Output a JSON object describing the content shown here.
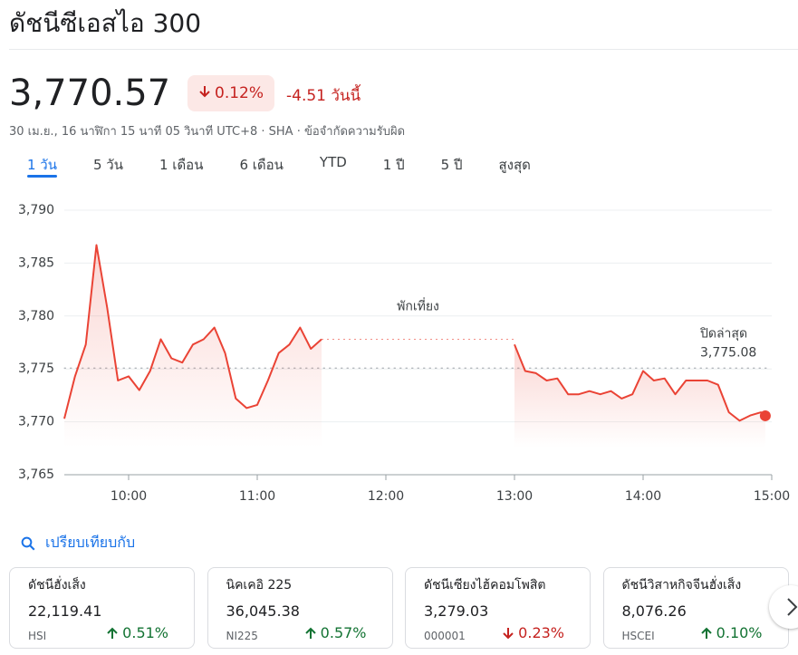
{
  "header": {
    "title": "ดัชนีซีเอสไอ 300",
    "price": "3,770.57",
    "change_percent": "0.12%",
    "direction": "down",
    "change": "-4.51 วันนี้",
    "subtitle": "30 เม.ย., 16 นาฬิกา 15 นาที 05 วินาที UTC+8 · SHA · ข้อจำกัดความรับผิด"
  },
  "tabs": {
    "items": [
      "1 วัน",
      "5 วัน",
      "1 เดือน",
      "6 เดือน",
      "YTD",
      "1 ปี",
      "5 ปี",
      "สูงสุด"
    ],
    "selected": 0
  },
  "chart_data": {
    "type": "line",
    "color": "#ea4335",
    "x": [
      "09:30",
      "09:35",
      "09:40",
      "09:45",
      "09:50",
      "09:55",
      "10:00",
      "10:05",
      "10:10",
      "10:15",
      "10:20",
      "10:25",
      "10:30",
      "10:35",
      "10:40",
      "10:45",
      "10:50",
      "10:55",
      "11:00",
      "11:05",
      "11:10",
      "11:15",
      "11:20",
      "11:25",
      "11:30",
      "12:00",
      "13:00",
      "13:05",
      "13:10",
      "13:15",
      "13:20",
      "13:25",
      "13:30",
      "13:35",
      "13:40",
      "13:45",
      "13:50",
      "13:55",
      "14:00",
      "14:05",
      "14:10",
      "14:15",
      "14:20",
      "14:25",
      "14:30",
      "14:35",
      "14:40",
      "14:45",
      "14:50",
      "14:55",
      "14:57"
    ],
    "values": [
      3770.3,
      3774.3,
      3777.3,
      3786.7,
      3780.8,
      3773.9,
      3774.3,
      3773.0,
      3774.8,
      3777.8,
      3776.0,
      3775.6,
      3777.3,
      3777.8,
      3778.9,
      3776.5,
      3772.2,
      3771.3,
      3771.6,
      3773.9,
      3776.5,
      3777.3,
      3778.9,
      3776.9,
      3777.8,
      null,
      3777.3,
      3774.8,
      3774.6,
      3773.9,
      3774.1,
      3772.6,
      3772.6,
      3772.9,
      3772.6,
      3772.9,
      3772.2,
      3772.6,
      3774.8,
      3773.9,
      3774.1,
      3772.6,
      3773.9,
      3773.9,
      3773.9,
      3773.5,
      3770.9,
      3770.1,
      3770.6,
      3770.9,
      3770.57
    ],
    "xlim": [
      "09:30",
      "15:00"
    ],
    "xticks": [
      "10:00",
      "11:00",
      "12:00",
      "13:00",
      "14:00",
      "15:00"
    ],
    "ylim": [
      3765,
      3790
    ],
    "yticks": [
      {
        "value": 3765,
        "label": "3,765"
      },
      {
        "value": 3770,
        "label": "3,770"
      },
      {
        "value": 3775,
        "label": "3,775"
      },
      {
        "value": 3780,
        "label": "3,780"
      },
      {
        "value": 3785,
        "label": "3,785"
      },
      {
        "value": 3790,
        "label": "3,790"
      }
    ],
    "grid": true,
    "annotation": "พักเที่ยง",
    "reference_line": {
      "label": "ปิดล่าสุด",
      "value": 3775.08,
      "value_label": "3,775.08"
    }
  },
  "compare": {
    "label": "เปรียบเทียบกับ",
    "cards": [
      {
        "name": "ดัชนีฮั่งเส็ง",
        "value": "22,119.41",
        "code": "HSI",
        "change": "0.51%",
        "direction": "up"
      },
      {
        "name": "นิคเคอิ 225",
        "value": "36,045.38",
        "code": "NI225",
        "change": "0.57%",
        "direction": "up"
      },
      {
        "name": "ดัชนีเซียงไฮ้คอมโพสิต",
        "value": "3,279.03",
        "code": "000001",
        "change": "0.23%",
        "direction": "down"
      },
      {
        "name": "ดัชนีวิสาหกิจจีนฮั่งเส็ง",
        "value": "8,076.26",
        "code": "HSCEI",
        "change": "0.10%",
        "direction": "up"
      }
    ]
  }
}
